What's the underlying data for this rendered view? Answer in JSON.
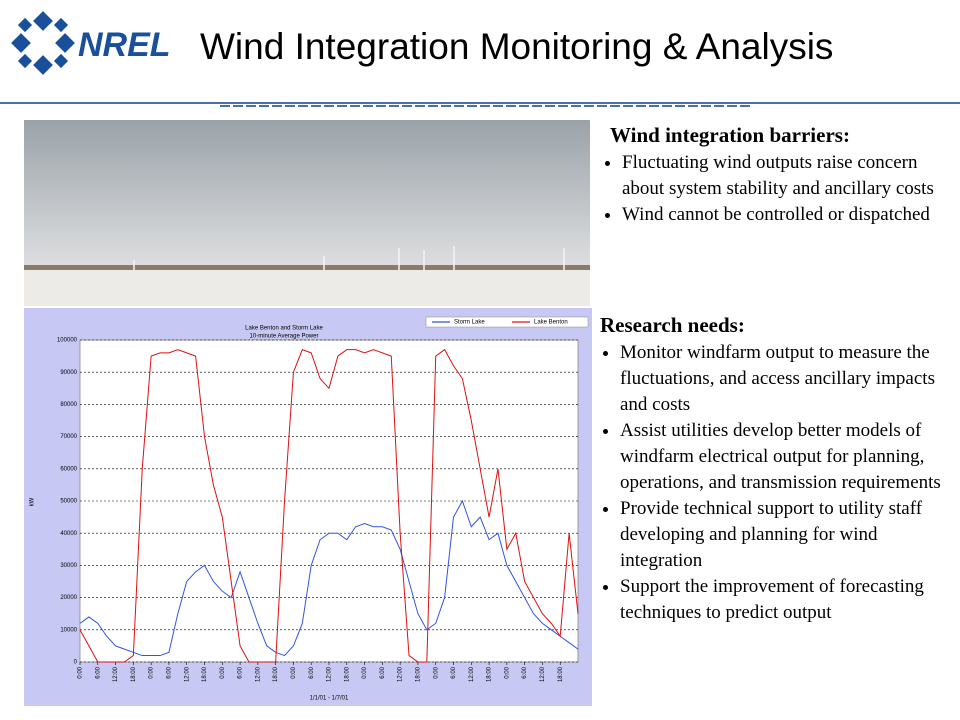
{
  "header": {
    "logo": "NREL",
    "title": "Wind Integration Monitoring & Analysis"
  },
  "barriers": {
    "heading": "Wind integration barriers:",
    "items": [
      "Fluctuating wind outputs raise concern about  system stability and ancillary costs",
      "Wind cannot be controlled or dispatched"
    ]
  },
  "needs": {
    "heading": "Research needs:",
    "items": [
      "Monitor windfarm output to measure the fluctuations, and access ancillary impacts and costs",
      "Assist utilities develop better models of windfarm electrical output for planning, operations, and transmission requirements",
      "Provide technical support to utility staff developing and planning for wind integration",
      "Support the improvement of forecasting techniques to predict output"
    ]
  },
  "chart_data": {
    "type": "line",
    "title": "Lake Benton and Storm Lake",
    "subtitle": "10-minute Average Power",
    "x_label": "1/1/01 - 1/7/01",
    "y_label": "kW",
    "x": [
      0,
      3,
      6,
      9,
      12,
      15,
      18,
      21,
      24,
      27,
      30,
      33,
      36,
      39,
      42,
      45,
      48,
      51,
      54,
      57,
      60,
      63,
      66,
      69,
      72,
      75,
      78,
      81,
      84,
      87,
      90,
      93,
      96,
      99,
      102,
      105,
      108,
      111,
      114,
      117,
      120,
      123,
      126,
      129,
      132,
      135,
      138,
      141,
      144,
      147,
      150,
      153,
      156,
      159,
      162,
      165,
      168
    ],
    "series": [
      {
        "name": "Storm Lake",
        "color": "#3355dd",
        "values": [
          12000,
          14000,
          12000,
          8000,
          5000,
          4000,
          3000,
          2000,
          2000,
          2000,
          3000,
          15000,
          25000,
          28000,
          30000,
          25000,
          22000,
          20000,
          28000,
          20000,
          12000,
          5000,
          3000,
          2000,
          5000,
          12000,
          30000,
          38000,
          40000,
          40000,
          38000,
          42000,
          43000,
          42000,
          42000,
          41000,
          35000,
          25000,
          15000,
          10000,
          12000,
          20000,
          45000,
          50000,
          42000,
          45000,
          38000,
          40000,
          30000,
          25000,
          20000,
          15000,
          12000,
          10000,
          8000,
          6000,
          4000
        ]
      },
      {
        "name": "Lake Benton",
        "color": "#dd1111",
        "values": [
          10000,
          5000,
          0,
          0,
          0,
          0,
          2000,
          60000,
          95000,
          96000,
          96000,
          97000,
          96000,
          95000,
          70000,
          55000,
          45000,
          25000,
          5000,
          0,
          0,
          0,
          0,
          50000,
          90000,
          97000,
          96000,
          88000,
          85000,
          95000,
          97000,
          97000,
          96000,
          97000,
          96000,
          95000,
          40000,
          2000,
          0,
          0,
          95000,
          97000,
          92000,
          88000,
          75000,
          60000,
          45000,
          60000,
          35000,
          40000,
          25000,
          20000,
          15000,
          12000,
          8000,
          40000,
          15000
        ]
      }
    ],
    "xlim": [
      0,
      168
    ],
    "xticks": [
      {
        "value": 0,
        "label": "0:00"
      },
      {
        "value": 6,
        "label": "6:00"
      },
      {
        "value": 12,
        "label": "12:00"
      },
      {
        "value": 18,
        "label": "18:00"
      },
      {
        "value": 24,
        "label": "0:00"
      },
      {
        "value": 30,
        "label": "6:00"
      },
      {
        "value": 36,
        "label": "12:00"
      },
      {
        "value": 42,
        "label": "18:00"
      },
      {
        "value": 48,
        "label": "0:00"
      },
      {
        "value": 54,
        "label": "6:00"
      },
      {
        "value": 60,
        "label": "12:00"
      },
      {
        "value": 66,
        "label": "18:00"
      },
      {
        "value": 72,
        "label": "0:00"
      },
      {
        "value": 78,
        "label": "6:00"
      },
      {
        "value": 84,
        "label": "12:00"
      },
      {
        "value": 90,
        "label": "18:00"
      },
      {
        "value": 96,
        "label": "0:00"
      },
      {
        "value": 102,
        "label": "6:00"
      },
      {
        "value": 108,
        "label": "12:00"
      },
      {
        "value": 114,
        "label": "18:00"
      },
      {
        "value": 120,
        "label": "0:00"
      },
      {
        "value": 126,
        "label": "6:00"
      },
      {
        "value": 132,
        "label": "12:00"
      },
      {
        "value": 138,
        "label": "18:00"
      },
      {
        "value": 144,
        "label": "0:00"
      },
      {
        "value": 150,
        "label": "6:00"
      },
      {
        "value": 156,
        "label": "12:00"
      },
      {
        "value": 162,
        "label": "18:00"
      }
    ],
    "ylim": [
      0,
      100000
    ],
    "yticks": [
      0,
      10000,
      20000,
      30000,
      40000,
      50000,
      60000,
      70000,
      80000,
      90000,
      100000
    ],
    "grid": true,
    "legend": "top-right"
  }
}
